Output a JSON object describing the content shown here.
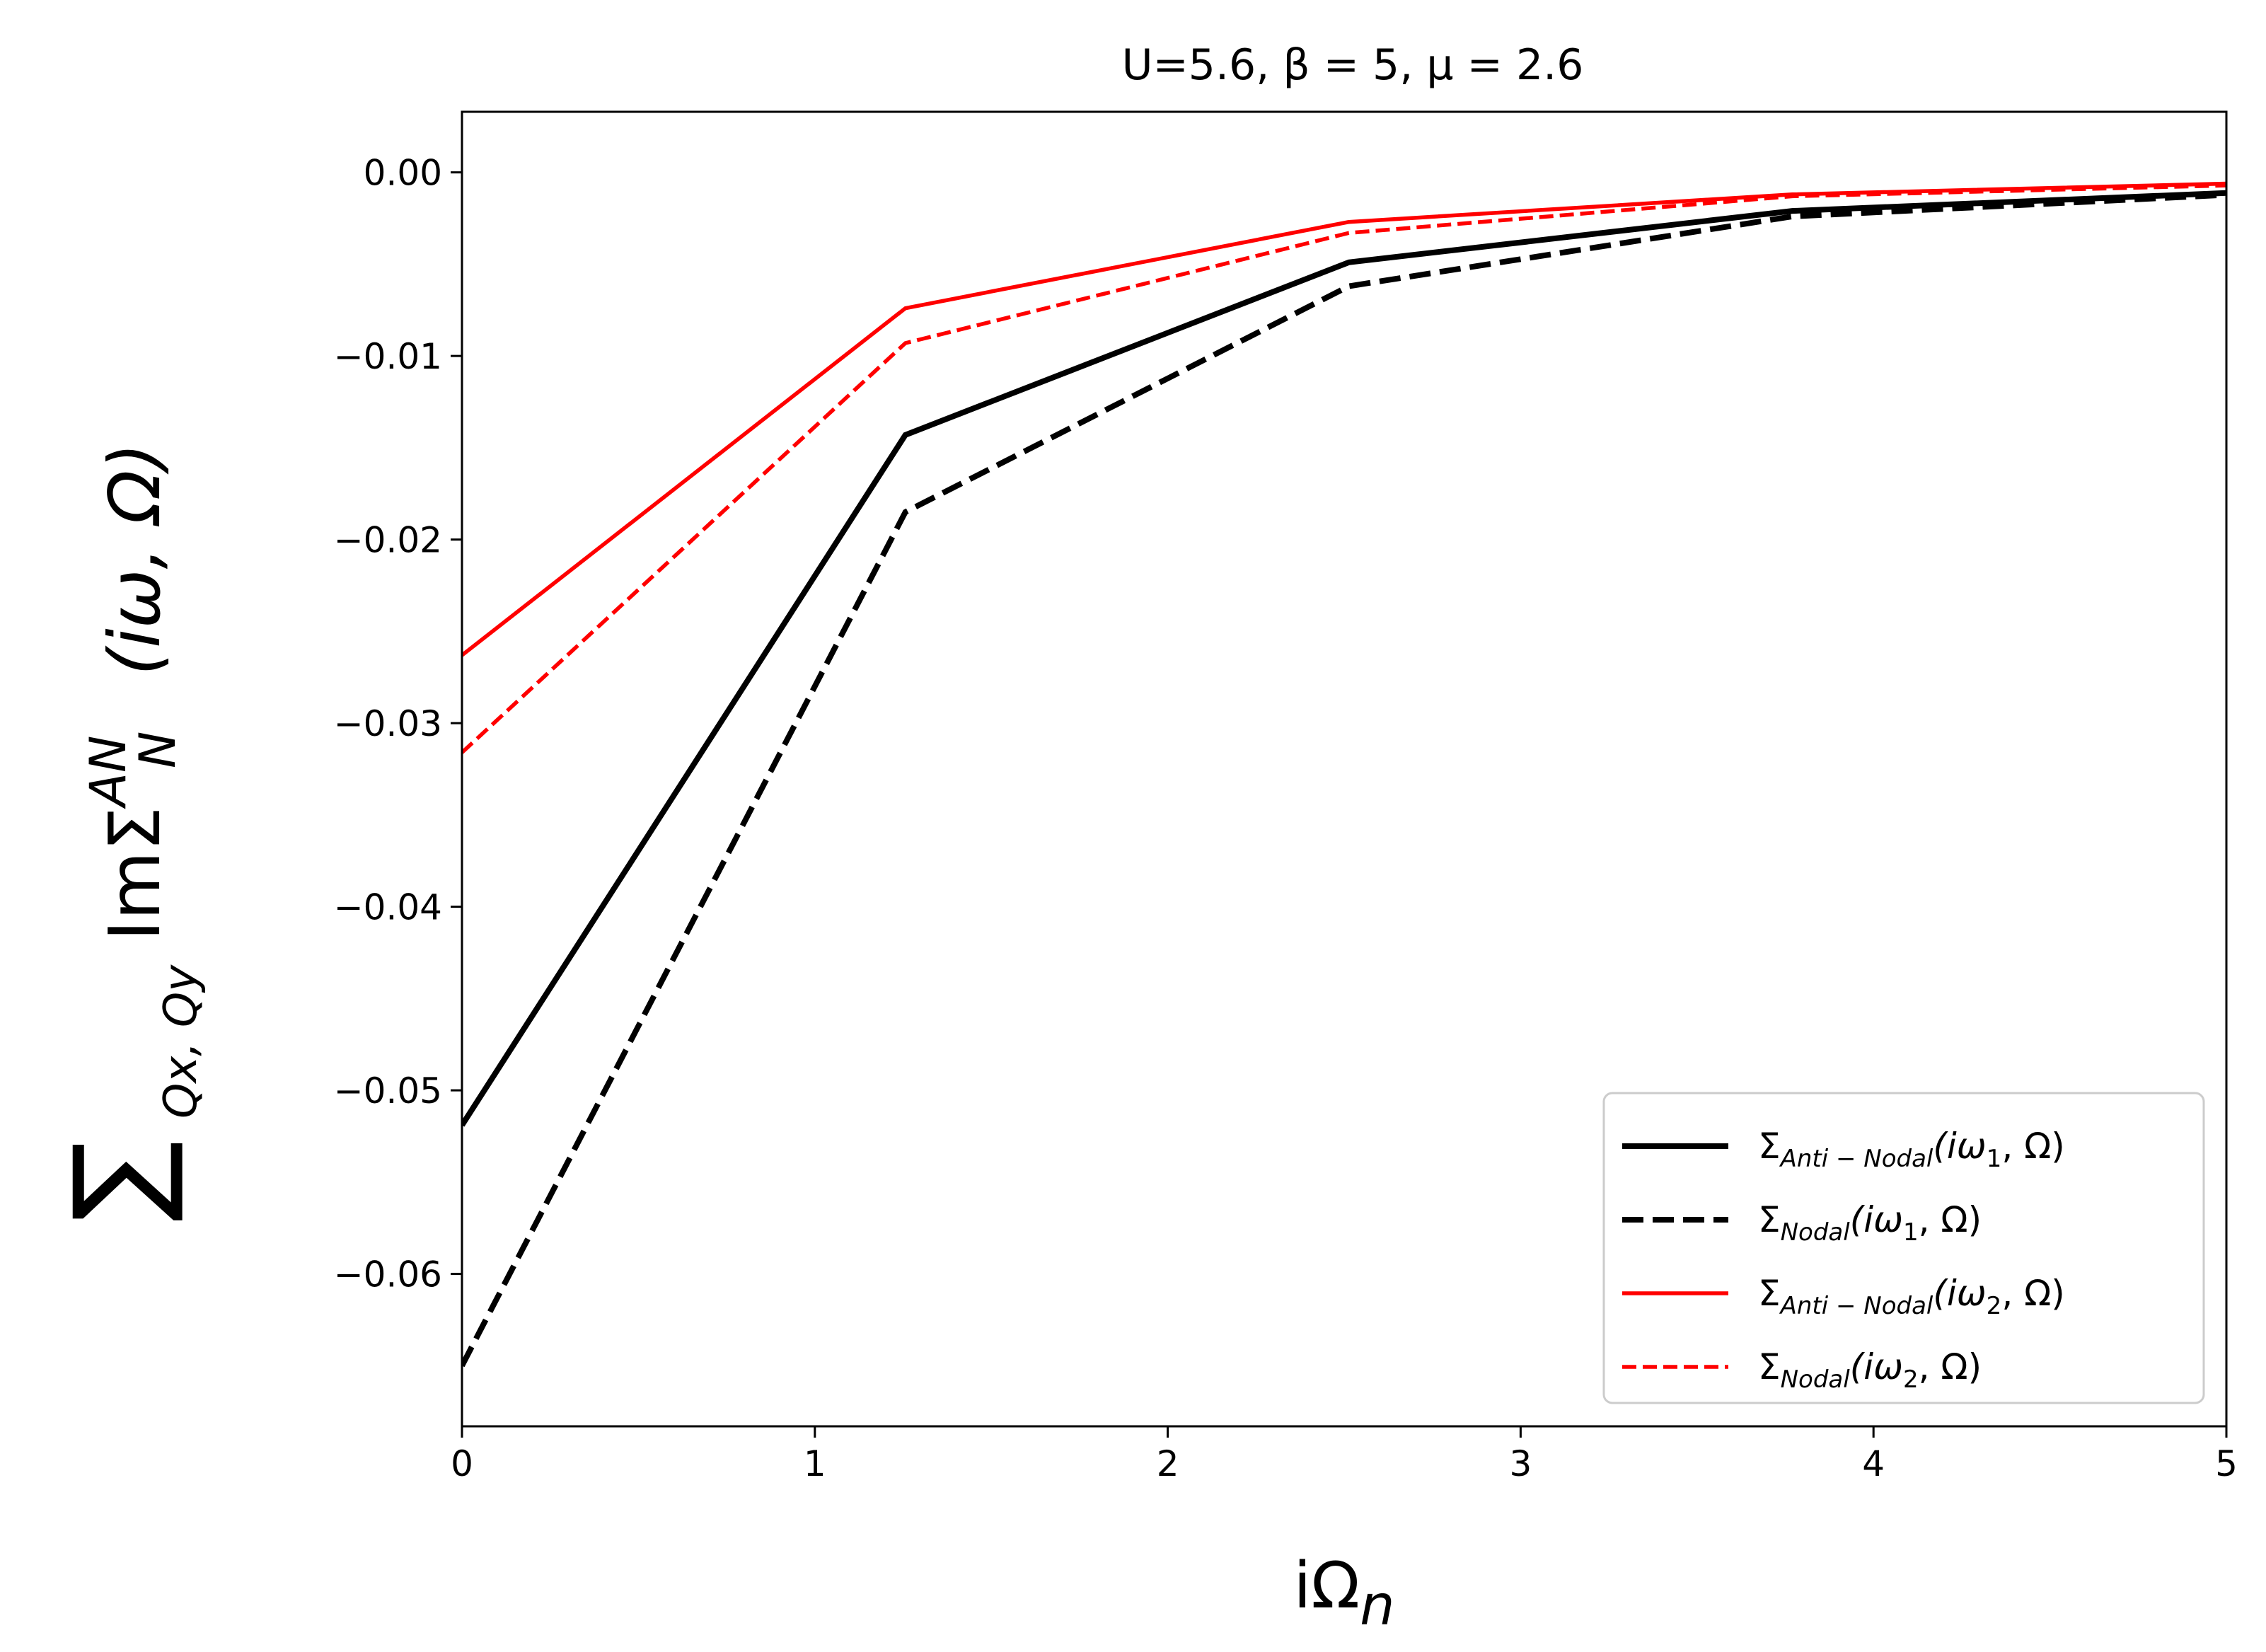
{
  "chart_data": {
    "type": "line",
    "title": "U=5.6, β = 5, μ = 2.6",
    "xlabel_main": "iΩ",
    "xlabel_sub": "n",
    "ylabel": {
      "sum_symbol": "∑",
      "sum_subscript": "Qx, Qy",
      "main": "ImΣ",
      "sub": "N",
      "sup": "AN",
      "tail": "(iω, Ω)"
    },
    "xlim": [
      0,
      5
    ],
    "ylim": [
      -0.0683,
      0.0033
    ],
    "x_ticks": [
      0,
      1,
      2,
      3,
      4,
      5
    ],
    "x_tick_labels": [
      "0",
      "1",
      "2",
      "3",
      "4",
      "5"
    ],
    "y_ticks": [
      0.0,
      -0.01,
      -0.02,
      -0.03,
      -0.04,
      -0.05,
      -0.06
    ],
    "y_tick_labels": [
      "0.00",
      "−0.01",
      "−0.02",
      "−0.03",
      "−0.04",
      "−0.05",
      "−0.06"
    ],
    "x": [
      0,
      1.2566,
      2.5133,
      3.7699,
      5.0265
    ],
    "grid": false,
    "legend_position": "lower-right",
    "series": [
      {
        "name_main": "Σ",
        "name_sub": "Anti − Nodal",
        "name_tail": "(iω",
        "name_tail_sub": "1",
        "name_end": ", Ω)",
        "color": "#000000",
        "style": "solid",
        "width": "thick",
        "values": [
          -0.0519,
          -0.0143,
          -0.0049,
          -0.0021,
          -0.0011
        ]
      },
      {
        "name_main": "Σ",
        "name_sub": "Nodal",
        "name_tail": "(iω",
        "name_tail_sub": "1",
        "name_end": ", Ω)",
        "color": "#000000",
        "style": "dashed",
        "width": "thick",
        "values": [
          -0.065,
          -0.0185,
          -0.0062,
          -0.0024,
          -0.0012
        ]
      },
      {
        "name_main": "Σ",
        "name_sub": "Anti − Nodal",
        "name_tail": "(iω",
        "name_tail_sub": "2",
        "name_end": ", Ω)",
        "color": "#ff0000",
        "style": "solid",
        "width": "thin",
        "values": [
          -0.0263,
          -0.0074,
          -0.0027,
          -0.0012,
          -0.0006
        ]
      },
      {
        "name_main": "Σ",
        "name_sub": "Nodal",
        "name_tail": "(iω",
        "name_tail_sub": "2",
        "name_end": ", Ω)",
        "color": "#ff0000",
        "style": "dashed",
        "width": "thin",
        "values": [
          -0.0316,
          -0.0093,
          -0.0033,
          -0.0013,
          -0.0007
        ]
      }
    ]
  }
}
